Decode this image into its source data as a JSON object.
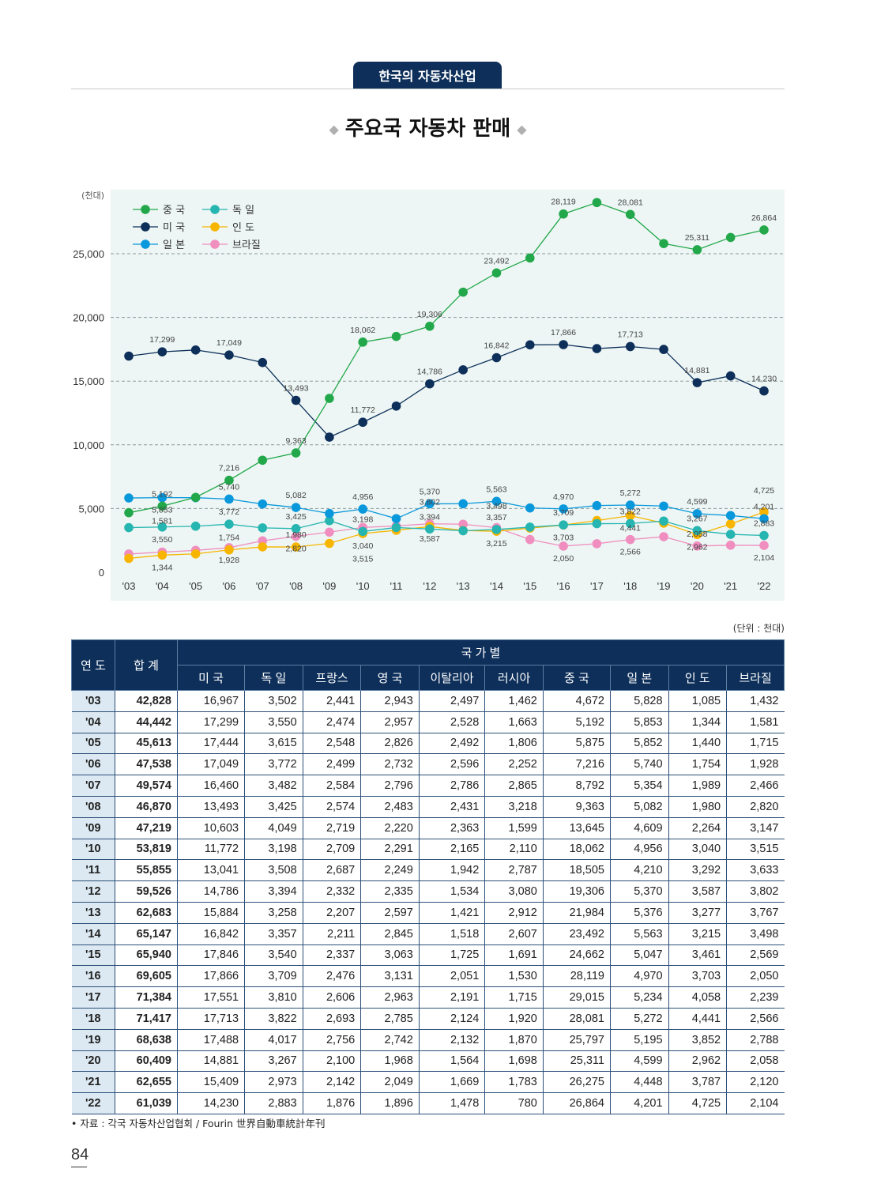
{
  "header": {
    "section": "한국의 자동차산업",
    "title": "주요국 자동차 판매",
    "diamond": "◆"
  },
  "chart_data": {
    "type": "line",
    "ylabel": "(천대)",
    "ylim": [
      0,
      27500
    ],
    "yticks": [
      0,
      5000,
      10000,
      15000,
      20000,
      25000
    ],
    "ytick_labels": [
      "0",
      "5,000",
      "10,000",
      "15,000",
      "20,000",
      "25,000"
    ],
    "categories": [
      "'03",
      "'04",
      "'05",
      "'06",
      "'07",
      "'08",
      "'09",
      "'10",
      "'11",
      "'12",
      "'13",
      "'14",
      "'15",
      "'16",
      "'17",
      "'18",
      "'19",
      "'20",
      "'21",
      "'22"
    ],
    "grid": "dashed horizontal",
    "legend_position": "top-left",
    "background": "#edf6f4",
    "series": [
      {
        "name": "중 국",
        "color": "#22a84a",
        "values": [
          4672,
          5192,
          5875,
          7216,
          8792,
          9363,
          13645,
          18062,
          18505,
          19306,
          21984,
          23492,
          24662,
          28119,
          29015,
          28081,
          25797,
          25311,
          26275,
          26864
        ],
        "labeled": [
          1,
          3,
          5,
          7,
          9,
          11,
          13,
          15,
          17,
          19
        ]
      },
      {
        "name": "미 국",
        "color": "#0d2f5a",
        "values": [
          16967,
          17299,
          17444,
          17049,
          16460,
          13493,
          10603,
          11772,
          13041,
          14786,
          15884,
          16842,
          17846,
          17866,
          17551,
          17713,
          17488,
          14881,
          15409,
          14230
        ],
        "labeled": [
          1,
          3,
          5,
          7,
          9,
          11,
          13,
          15,
          17,
          19
        ]
      },
      {
        "name": "일 본",
        "color": "#0a98dc",
        "values": [
          5828,
          5853,
          5852,
          5740,
          5354,
          5082,
          4609,
          4956,
          4210,
          5370,
          5376,
          5563,
          5047,
          4970,
          5234,
          5272,
          5195,
          4599,
          4448,
          4201
        ],
        "labeled": [
          1,
          3,
          5,
          7,
          9,
          11,
          13,
          15,
          17,
          19
        ]
      },
      {
        "name": "독 일",
        "color": "#26b5b0",
        "values": [
          3502,
          3550,
          3615,
          3772,
          3482,
          3425,
          4049,
          3198,
          3508,
          3394,
          3258,
          3357,
          3540,
          3709,
          3810,
          3822,
          4017,
          3267,
          2973,
          2883
        ],
        "labeled": [
          1,
          3,
          5,
          7,
          9,
          11,
          13,
          15,
          17,
          19
        ]
      },
      {
        "name": "인 도",
        "color": "#f7b500",
        "values": [
          1085,
          1344,
          1440,
          1754,
          1989,
          1980,
          2264,
          3040,
          3292,
          3587,
          3277,
          3215,
          3461,
          3703,
          4058,
          4441,
          3852,
          2962,
          3787,
          4725
        ],
        "labeled": [
          1,
          3,
          5,
          7,
          9,
          11,
          13,
          15,
          17,
          19
        ]
      },
      {
        "name": "브라질",
        "color": "#f08ec0",
        "values": [
          1432,
          1581,
          1715,
          1928,
          2466,
          2820,
          3147,
          3515,
          3633,
          3802,
          3767,
          3498,
          2569,
          2050,
          2239,
          2566,
          2788,
          2058,
          2120,
          2104
        ],
        "labeled": [
          1,
          3,
          5,
          7,
          9,
          11,
          13,
          15,
          17,
          19
        ]
      }
    ]
  },
  "table": {
    "unit": "(단위 : 천대)",
    "head_year": "연 도",
    "head_total": "합 계",
    "head_group": "국 가 별",
    "countries": [
      "미 국",
      "독 일",
      "프랑스",
      "영 국",
      "이탈리아",
      "러시아",
      "중 국",
      "일 본",
      "인 도",
      "브라질"
    ],
    "rows": [
      [
        "'03",
        "42,828",
        "16,967",
        "3,502",
        "2,441",
        "2,943",
        "2,497",
        "1,462",
        "4,672",
        "5,828",
        "1,085",
        "1,432"
      ],
      [
        "'04",
        "44,442",
        "17,299",
        "3,550",
        "2,474",
        "2,957",
        "2,528",
        "1,663",
        "5,192",
        "5,853",
        "1,344",
        "1,581"
      ],
      [
        "'05",
        "45,613",
        "17,444",
        "3,615",
        "2,548",
        "2,826",
        "2,492",
        "1,806",
        "5,875",
        "5,852",
        "1,440",
        "1,715"
      ],
      [
        "'06",
        "47,538",
        "17,049",
        "3,772",
        "2,499",
        "2,732",
        "2,596",
        "2,252",
        "7,216",
        "5,740",
        "1,754",
        "1,928"
      ],
      [
        "'07",
        "49,574",
        "16,460",
        "3,482",
        "2,584",
        "2,796",
        "2,786",
        "2,865",
        "8,792",
        "5,354",
        "1,989",
        "2,466"
      ],
      [
        "'08",
        "46,870",
        "13,493",
        "3,425",
        "2,574",
        "2,483",
        "2,431",
        "3,218",
        "9,363",
        "5,082",
        "1,980",
        "2,820"
      ],
      [
        "'09",
        "47,219",
        "10,603",
        "4,049",
        "2,719",
        "2,220",
        "2,363",
        "1,599",
        "13,645",
        "4,609",
        "2,264",
        "3,147"
      ],
      [
        "'10",
        "53,819",
        "11,772",
        "3,198",
        "2,709",
        "2,291",
        "2,165",
        "2,110",
        "18,062",
        "4,956",
        "3,040",
        "3,515"
      ],
      [
        "'11",
        "55,855",
        "13,041",
        "3,508",
        "2,687",
        "2,249",
        "1,942",
        "2,787",
        "18,505",
        "4,210",
        "3,292",
        "3,633"
      ],
      [
        "'12",
        "59,526",
        "14,786",
        "3,394",
        "2,332",
        "2,335",
        "1,534",
        "3,080",
        "19,306",
        "5,370",
        "3,587",
        "3,802"
      ],
      [
        "'13",
        "62,683",
        "15,884",
        "3,258",
        "2,207",
        "2,597",
        "1,421",
        "2,912",
        "21,984",
        "5,376",
        "3,277",
        "3,767"
      ],
      [
        "'14",
        "65,147",
        "16,842",
        "3,357",
        "2,211",
        "2,845",
        "1,518",
        "2,607",
        "23,492",
        "5,563",
        "3,215",
        "3,498"
      ],
      [
        "'15",
        "65,940",
        "17,846",
        "3,540",
        "2,337",
        "3,063",
        "1,725",
        "1,691",
        "24,662",
        "5,047",
        "3,461",
        "2,569"
      ],
      [
        "'16",
        "69,605",
        "17,866",
        "3,709",
        "2,476",
        "3,131",
        "2,051",
        "1,530",
        "28,119",
        "4,970",
        "3,703",
        "2,050"
      ],
      [
        "'17",
        "71,384",
        "17,551",
        "3,810",
        "2,606",
        "2,963",
        "2,191",
        "1,715",
        "29,015",
        "5,234",
        "4,058",
        "2,239"
      ],
      [
        "'18",
        "71,417",
        "17,713",
        "3,822",
        "2,693",
        "2,785",
        "2,124",
        "1,920",
        "28,081",
        "5,272",
        "4,441",
        "2,566"
      ],
      [
        "'19",
        "68,638",
        "17,488",
        "4,017",
        "2,756",
        "2,742",
        "2,132",
        "1,870",
        "25,797",
        "5,195",
        "3,852",
        "2,788"
      ],
      [
        "'20",
        "60,409",
        "14,881",
        "3,267",
        "2,100",
        "1,968",
        "1,564",
        "1,698",
        "25,311",
        "4,599",
        "2,962",
        "2,058"
      ],
      [
        "'21",
        "62,655",
        "15,409",
        "2,973",
        "2,142",
        "2,049",
        "1,669",
        "1,783",
        "26,275",
        "4,448",
        "3,787",
        "2,120"
      ],
      [
        "'22",
        "61,039",
        "14,230",
        "2,883",
        "1,876",
        "1,896",
        "1,478",
        "780",
        "26,864",
        "4,201",
        "4,725",
        "2,104"
      ]
    ]
  },
  "footer": {
    "source": "• 자료 : 각국 자동차산업협회 / Fourin 世界自動車統計年刊",
    "page_number": "84"
  }
}
